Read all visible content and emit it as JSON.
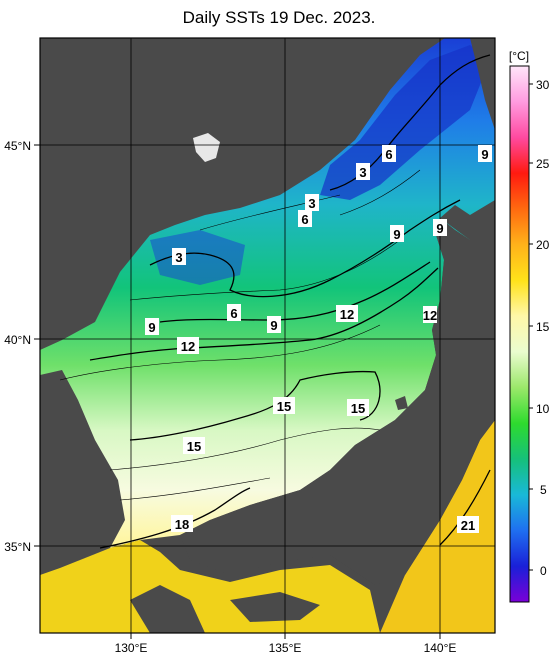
{
  "title": "Daily SSTs 19 Dec. 2023.",
  "map": {
    "lon_labels": [
      "130°E",
      "135°E",
      "140°E"
    ],
    "lat_labels": [
      "45°N",
      "40°N",
      "35°N"
    ],
    "land_color": "#4a4a4a",
    "grid_color": "#000000",
    "contour_labels": [
      {
        "text": "3"
      },
      {
        "text": "3"
      },
      {
        "text": "3"
      },
      {
        "text": "6"
      },
      {
        "text": "6"
      },
      {
        "text": "6"
      },
      {
        "text": "9"
      },
      {
        "text": "9"
      },
      {
        "text": "9"
      },
      {
        "text": "9"
      },
      {
        "text": "12"
      },
      {
        "text": "12"
      },
      {
        "text": "12"
      },
      {
        "text": "15"
      },
      {
        "text": "15"
      },
      {
        "text": "15"
      },
      {
        "text": "18"
      },
      {
        "text": "21"
      },
      {
        "text": "9"
      }
    ]
  },
  "colorbar": {
    "unit": "[°C]",
    "ticks": [
      "30",
      "25",
      "20",
      "15",
      "10",
      "5",
      "0"
    ],
    "stops": [
      "#7a00d8",
      "#1a20d8",
      "#1f6ff0",
      "#19b9d8",
      "#16c07a",
      "#2edb2e",
      "#9be86a",
      "#eafccf",
      "#fff7a8",
      "#ffe21a",
      "#ffb21a",
      "#ff6a10",
      "#ff1a10",
      "#ff4aa0",
      "#ff9be0",
      "#ffe6fa"
    ]
  }
}
